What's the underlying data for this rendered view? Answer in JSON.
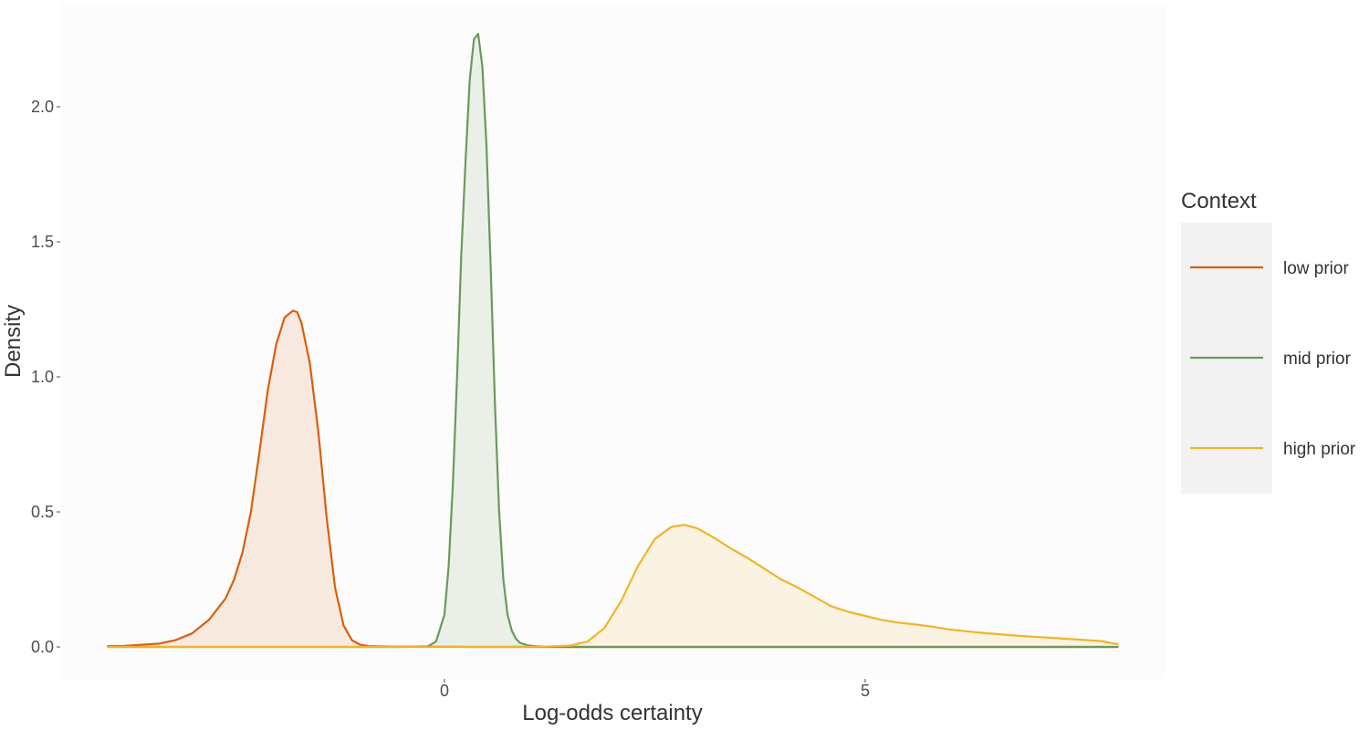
{
  "chart_data": {
    "type": "area",
    "title": "",
    "xlabel": "Log-odds certainty",
    "ylabel": "Density",
    "xlim": [
      -4,
      8
    ],
    "ylim": [
      0,
      2.27
    ],
    "grid": false,
    "x_ticks": [
      0,
      5
    ],
    "x_tick_labels": [
      "0",
      "5"
    ],
    "y_ticks": [
      0.0,
      0.5,
      1.0,
      1.5,
      2.0
    ],
    "y_tick_labels": [
      "0.0",
      "0.5",
      "1.0",
      "1.5",
      "2.0"
    ],
    "legend": {
      "title": "Context",
      "placement": "right"
    },
    "series": [
      {
        "name": "low prior",
        "color": "#d95f0e",
        "x": [
          -4.0,
          -3.8,
          -3.6,
          -3.4,
          -3.2,
          -3.0,
          -2.8,
          -2.6,
          -2.5,
          -2.4,
          -2.3,
          -2.2,
          -2.1,
          -2.0,
          -1.9,
          -1.8,
          -1.75,
          -1.7,
          -1.6,
          -1.5,
          -1.4,
          -1.3,
          -1.2,
          -1.1,
          -1.0,
          -0.9,
          -0.8,
          -0.6,
          -0.4,
          -0.2,
          0.0,
          0.2,
          0.4,
          0.6,
          0.8,
          1.0,
          1.5,
          2.0,
          3.0,
          4.0,
          5.0,
          6.0,
          7.0,
          8.0
        ],
        "y": [
          0.003,
          0.004,
          0.008,
          0.012,
          0.025,
          0.05,
          0.1,
          0.18,
          0.25,
          0.35,
          0.5,
          0.72,
          0.95,
          1.12,
          1.22,
          1.245,
          1.24,
          1.2,
          1.05,
          0.8,
          0.48,
          0.22,
          0.08,
          0.025,
          0.008,
          0.003,
          0.002,
          0.001,
          0.001,
          0.0005,
          0.0003,
          0.0002,
          0.0001,
          0.0001,
          0.0001,
          0.0001,
          0.0001,
          0.0001,
          0.0001,
          0.0001,
          0.0001,
          0.0001,
          0.0001,
          0.0001
        ]
      },
      {
        "name": "mid prior",
        "color": "#6a9a5b",
        "x": [
          -4.0,
          -3.0,
          -2.0,
          -1.0,
          -0.5,
          -0.2,
          -0.1,
          0.0,
          0.05,
          0.1,
          0.15,
          0.2,
          0.25,
          0.3,
          0.35,
          0.4,
          0.45,
          0.5,
          0.55,
          0.6,
          0.65,
          0.7,
          0.75,
          0.8,
          0.85,
          0.9,
          1.0,
          1.1,
          1.2,
          1.4,
          1.6,
          2.0,
          3.0,
          4.0,
          5.0,
          6.0,
          7.0,
          8.0
        ],
        "y": [
          0.0,
          0.0,
          0.0,
          0.0,
          0.0,
          0.002,
          0.02,
          0.12,
          0.3,
          0.6,
          1.0,
          1.45,
          1.8,
          2.1,
          2.25,
          2.27,
          2.15,
          1.85,
          1.4,
          0.9,
          0.5,
          0.25,
          0.12,
          0.06,
          0.03,
          0.015,
          0.005,
          0.002,
          0.001,
          0.0,
          0.0,
          0.0,
          0.0,
          0.0,
          0.0,
          0.0,
          0.0,
          0.0
        ]
      },
      {
        "name": "high prior",
        "color": "#f0b429",
        "x": [
          -4.0,
          -2.0,
          0.0,
          0.8,
          1.2,
          1.5,
          1.7,
          1.9,
          2.1,
          2.3,
          2.5,
          2.7,
          2.85,
          3.0,
          3.2,
          3.4,
          3.6,
          3.8,
          4.0,
          4.2,
          4.4,
          4.6,
          4.8,
          5.0,
          5.2,
          5.4,
          5.6,
          5.8,
          6.0,
          6.2,
          6.4,
          6.6,
          6.8,
          7.0,
          7.2,
          7.4,
          7.6,
          7.8,
          8.0
        ],
        "y": [
          0.0,
          0.0,
          0.0,
          0.0,
          0.001,
          0.005,
          0.02,
          0.07,
          0.17,
          0.3,
          0.4,
          0.445,
          0.452,
          0.44,
          0.405,
          0.365,
          0.33,
          0.29,
          0.25,
          0.22,
          0.185,
          0.15,
          0.13,
          0.115,
          0.1,
          0.09,
          0.083,
          0.075,
          0.065,
          0.058,
          0.052,
          0.047,
          0.042,
          0.038,
          0.034,
          0.03,
          0.026,
          0.022,
          0.01
        ]
      }
    ]
  }
}
